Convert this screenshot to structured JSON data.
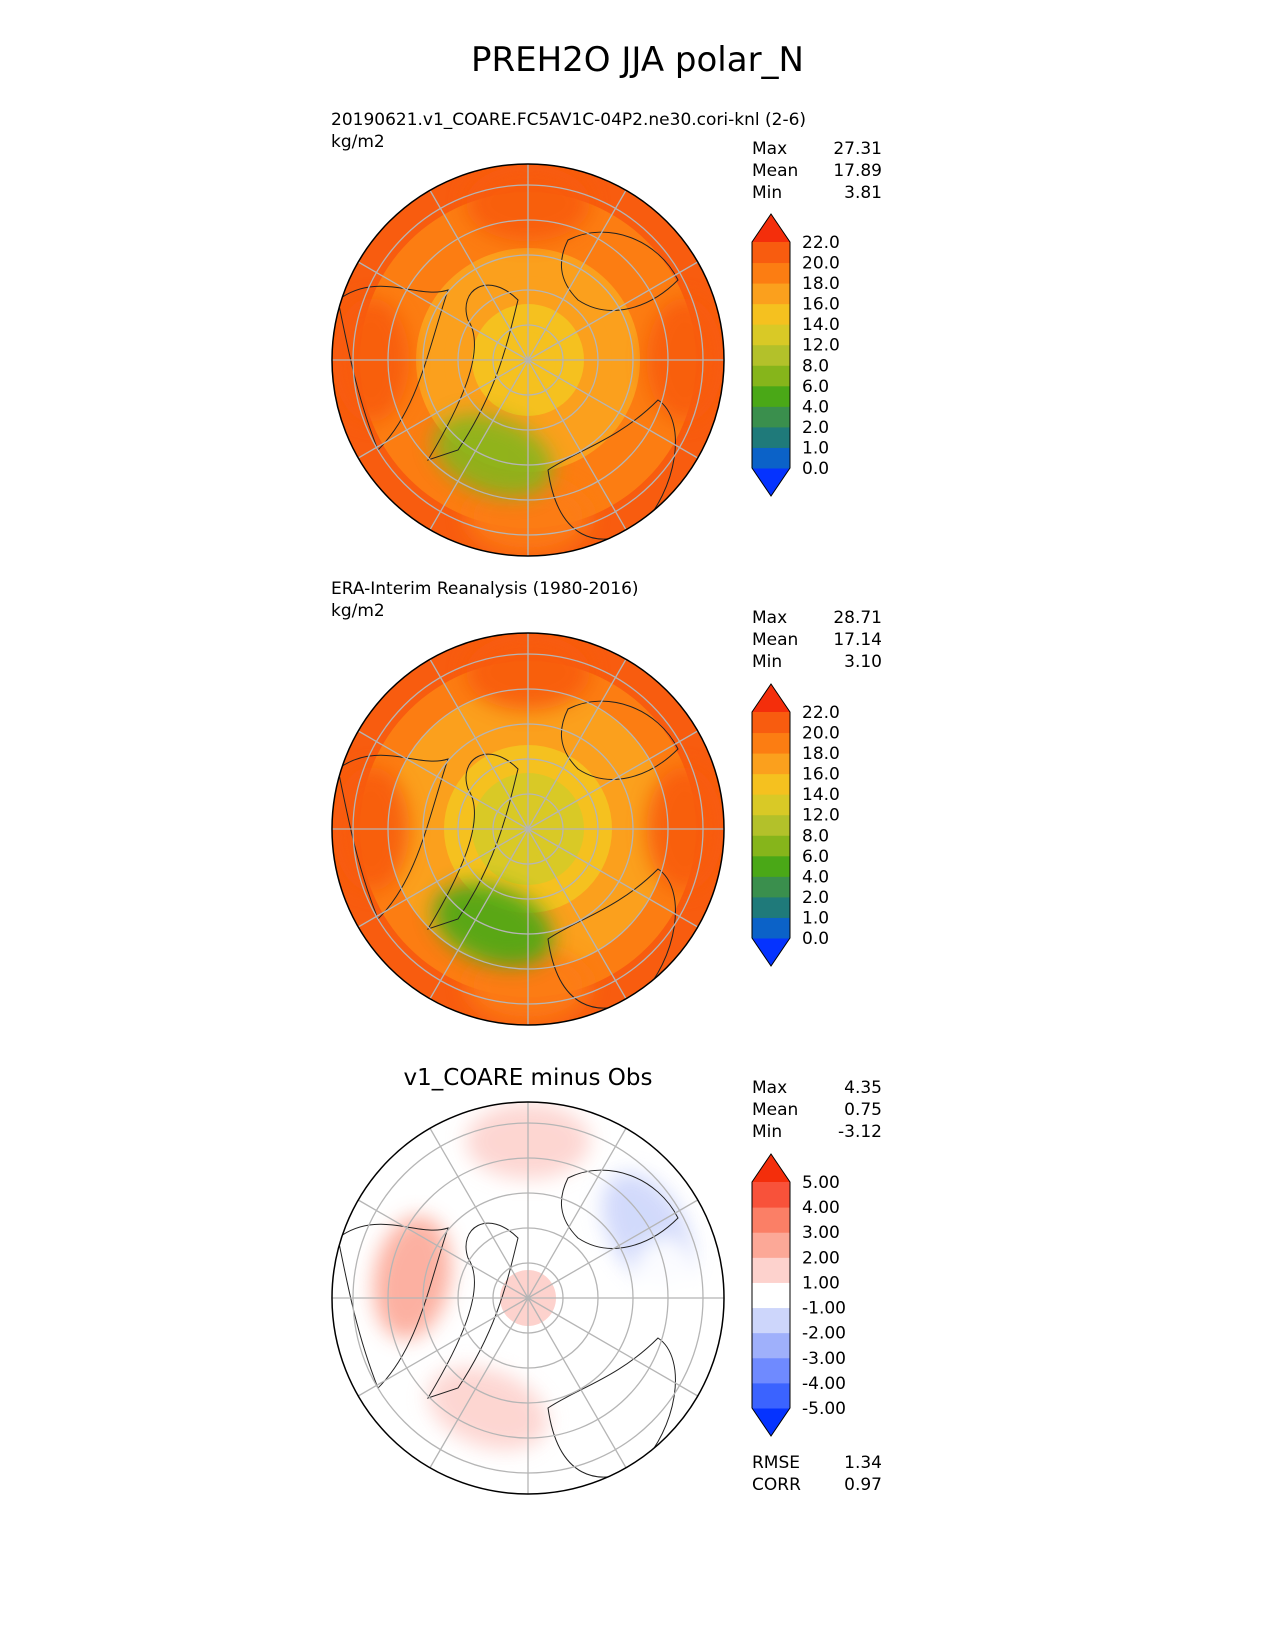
{
  "figure": {
    "title": "PREH2O JJA polar_N"
  },
  "panels": [
    {
      "title": "20190621.v1_COARE.FC5AV1C-04P2.ne30.cori-knl (2-6)",
      "units": "kg/m2",
      "stats": [
        {
          "label": "Max",
          "value": "27.31"
        },
        {
          "label": "Mean",
          "value": "17.89"
        },
        {
          "label": "Min",
          "value": "3.81"
        }
      ],
      "pole_value": 13.5,
      "field": [
        {
          "lon": 0,
          "lat": 50,
          "value": 20.5
        },
        {
          "lon": 90,
          "lat": 50,
          "value": 21.5
        },
        {
          "lon": 180,
          "lat": 50,
          "value": 19.5
        },
        {
          "lon": 270,
          "lat": 50,
          "value": 20.0
        },
        {
          "lon": 200,
          "lat": 64,
          "value": 6.0
        }
      ]
    },
    {
      "title": "ERA-Interim Reanalysis (1980-2016)",
      "units": "kg/m2",
      "stats": [
        {
          "label": "Max",
          "value": "28.71"
        },
        {
          "label": "Mean",
          "value": "17.14"
        },
        {
          "label": "Min",
          "value": "3.10"
        }
      ],
      "pole_value": 11.0,
      "field": [
        {
          "lon": 0,
          "lat": 50,
          "value": 20.5
        },
        {
          "lon": 90,
          "lat": 50,
          "value": 21.0
        },
        {
          "lon": 180,
          "lat": 50,
          "value": 19.0
        },
        {
          "lon": 270,
          "lat": 50,
          "value": 20.0
        },
        {
          "lon": 200,
          "lat": 64,
          "value": 5.0
        }
      ]
    },
    {
      "title": "v1_COARE minus Obs",
      "stats": [
        {
          "label": "Max",
          "value": "4.35"
        },
        {
          "label": "Mean",
          "value": "0.75"
        },
        {
          "label": "Min",
          "value": "-3.12"
        }
      ],
      "metrics": [
        {
          "label": "RMSE",
          "value": "1.34"
        },
        {
          "label": "CORR",
          "value": "0.97"
        }
      ],
      "pole_value": 1.2,
      "field": [
        {
          "lon": 0,
          "lat": 50,
          "value": 1.5
        },
        {
          "lon": 60,
          "lat": 55,
          "value": -1.5
        },
        {
          "lon": 90,
          "lat": 55,
          "value": -0.5
        },
        {
          "lon": 200,
          "lat": 60,
          "value": 1.5
        },
        {
          "lon": 280,
          "lat": 60,
          "value": 2.0
        }
      ]
    }
  ],
  "colorbars": {
    "absolute": {
      "ticks": [
        "0.0",
        "1.0",
        "2.0",
        "4.0",
        "6.0",
        "8.0",
        "12.0",
        "14.0",
        "16.0",
        "18.0",
        "20.0",
        "22.0"
      ],
      "colors": [
        "#0533ff",
        "#0b62c8",
        "#1f7a7a",
        "#3a8f4d",
        "#4aa817",
        "#86b51b",
        "#b3c12a",
        "#d9c926",
        "#f5c11f",
        "#fba01d",
        "#fc7d12",
        "#f85c0f",
        "#f42e0b"
      ]
    },
    "difference": {
      "ticks": [
        "-5.00",
        "-4.00",
        "-3.00",
        "-2.00",
        "-1.00",
        "1.00",
        "2.00",
        "3.00",
        "4.00",
        "5.00"
      ],
      "colors": [
        "#0533ff",
        "#3b63ff",
        "#6f8aff",
        "#9fb0fb",
        "#cdd6fb",
        "#ffffff",
        "#fdd2cd",
        "#fca897",
        "#fb7f66",
        "#f8523a",
        "#f42e0b"
      ]
    }
  }
}
